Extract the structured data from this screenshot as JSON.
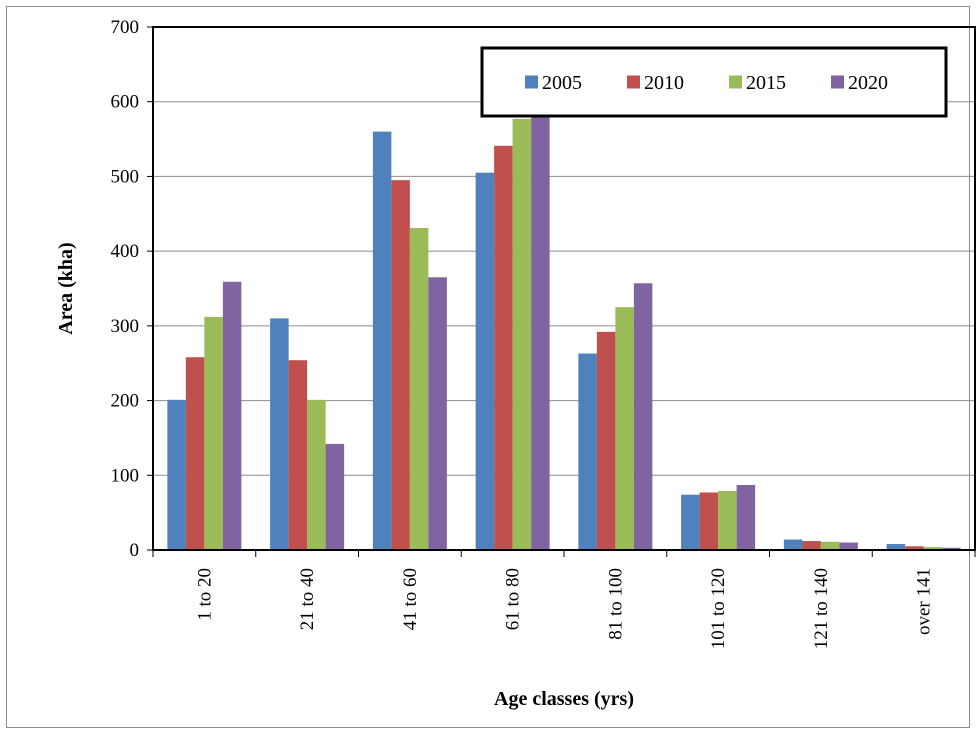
{
  "chart_data": {
    "type": "bar",
    "title": "",
    "xlabel": "Age classes (yrs)",
    "ylabel": "Area (kha)",
    "ylim": [
      0,
      700
    ],
    "yticks": [
      0,
      100,
      200,
      300,
      400,
      500,
      600,
      700
    ],
    "grid": "horizontal",
    "legend_position": "top-right",
    "categories": [
      "1 to 20",
      "21 to 40",
      "41 to 60",
      "61 to 80",
      "81 to 100",
      "101 to 120",
      "121 to 140",
      "over 141"
    ],
    "series": [
      {
        "name": "2005",
        "color": "#4f81bd",
        "values": [
          201,
          310,
          560,
          505,
          263,
          74,
          14,
          8
        ]
      },
      {
        "name": "2010",
        "color": "#c0504d",
        "values": [
          258,
          254,
          495,
          541,
          292,
          77,
          12,
          5
        ]
      },
      {
        "name": "2015",
        "color": "#9bbb59",
        "values": [
          312,
          201,
          431,
          577,
          325,
          79,
          11,
          4
        ]
      },
      {
        "name": "2020",
        "color": "#8064a2",
        "values": [
          359,
          142,
          365,
          588,
          357,
          87,
          10,
          3
        ]
      }
    ]
  }
}
